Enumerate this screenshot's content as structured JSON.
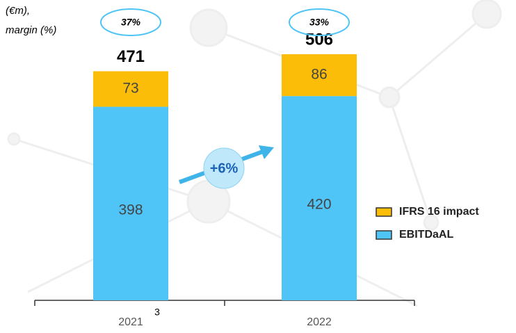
{
  "chart_data": {
    "type": "stacked-bar",
    "y_label": [
      "(€m),",
      "margin (%)"
    ],
    "categories": [
      "2021",
      "2022"
    ],
    "series": [
      {
        "name": "EBITDaAL",
        "color": "#4fc4f6",
        "values": [
          398,
          420
        ]
      },
      {
        "name": "IFRS 16 impact",
        "color": "#fbbd08",
        "values": [
          73,
          86
        ]
      }
    ],
    "totals": [
      471,
      506
    ],
    "margins": [
      37,
      33
    ],
    "margin_labels": [
      "37%",
      "33%"
    ],
    "growth_label": "+6%",
    "footnote_marker": "3"
  }
}
